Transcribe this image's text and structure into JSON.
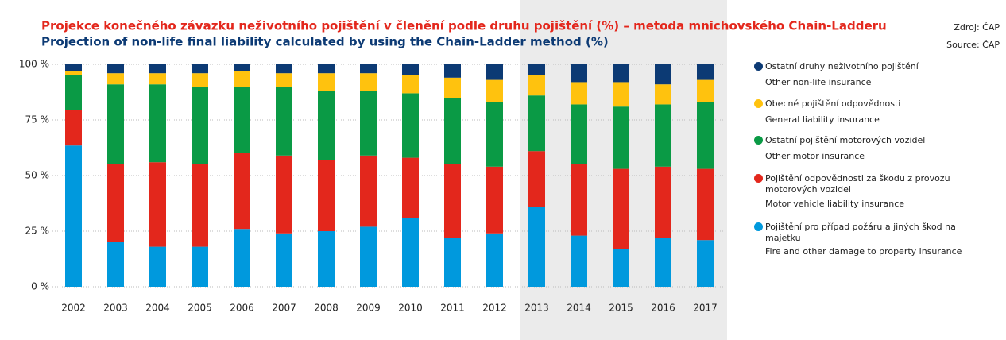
{
  "chart_data": {
    "type": "stacked_bar",
    "title": "Projekce konečného závazku neživotního pojištění v členění podle druhu pojištění (%) – metoda mnichovského Chain-Ladderu",
    "subtitle": "Projection of non-life final liability calculated by using the Chain-Ladder method (%)",
    "source": [
      "Zdroj: ČAP",
      "Source: ČAP"
    ],
    "categories": [
      "2002",
      "2003",
      "2004",
      "2005",
      "2006",
      "2007",
      "2008",
      "2009",
      "2010",
      "2011",
      "2012",
      "2013",
      "2014",
      "2015",
      "2016",
      "2017"
    ],
    "series": [
      {
        "name": "Pojištění pro případ požáru a jiných škod na majetku",
        "name_en": "Fire and other damage to property insurance",
        "color": "#0099dd",
        "values": [
          63.5,
          20,
          18,
          18,
          26,
          24,
          25,
          27,
          31,
          22,
          24,
          36,
          23,
          17,
          22,
          21
        ]
      },
      {
        "name": "Pojištění odpovědnosti za škodu z provozu motorových vozidel",
        "name_en": "Motor vehicle liability insurance",
        "color": "#e3271c",
        "values": [
          16,
          35,
          38,
          37,
          34,
          35,
          32,
          32,
          27,
          33,
          30,
          25,
          32,
          36,
          32,
          32
        ]
      },
      {
        "name": "Ostatní pojištění motorových vozidel",
        "name_en": "Other motor insurance",
        "color": "#0a9a45",
        "values": [
          15.5,
          36,
          35,
          35,
          30,
          31,
          31,
          29,
          29,
          30,
          29,
          25,
          27,
          28,
          28,
          30
        ]
      },
      {
        "name": "Obecné pojištění odpovědnosti",
        "name_en": "General liability insurance",
        "color": "#ffc20e",
        "values": [
          2,
          5,
          5,
          6,
          7,
          6,
          8,
          8,
          8,
          9,
          10,
          9,
          10,
          11,
          9,
          10
        ]
      },
      {
        "name": "Ostatní druhy neživotního pojištění",
        "name_en": "Other non-life insurance",
        "color": "#0c3a74",
        "values": [
          3,
          4,
          4,
          4,
          3,
          4,
          4,
          4,
          5,
          6,
          7,
          5,
          8,
          8,
          9,
          7
        ]
      }
    ],
    "ylim": [
      0,
      100
    ],
    "yticks": [
      {
        "value": 0,
        "label": "0 %"
      },
      {
        "value": 25,
        "label": "25 %"
      },
      {
        "value": 50,
        "label": "50 %"
      },
      {
        "value": 75,
        "label": "75 %"
      },
      {
        "value": 100,
        "label": "100 %"
      }
    ],
    "grid": true
  }
}
